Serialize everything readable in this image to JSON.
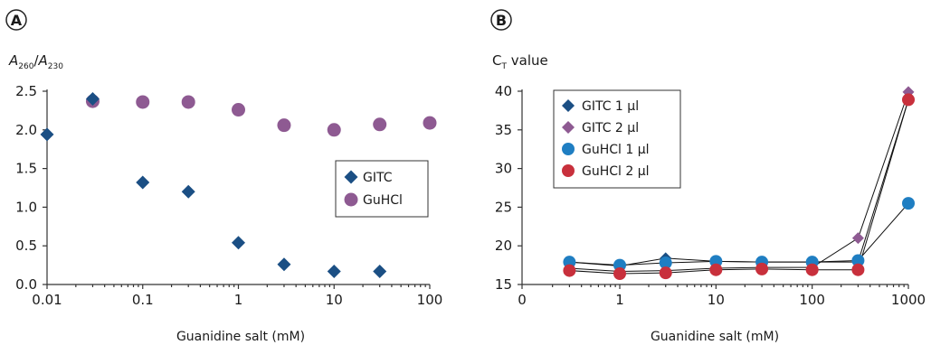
{
  "chart_data": [
    {
      "panel": "A",
      "type": "scatter",
      "ylabel": "A260/A230",
      "ylabel_parts": {
        "var1": "A",
        "sub1": "260",
        "slash": "/",
        "var2": "A",
        "sub2": "230"
      },
      "xlabel": "Guanidine salt (mM)",
      "xscale": "log",
      "xlim": [
        0.01,
        100
      ],
      "ylim": [
        0.0,
        2.5
      ],
      "xticks": [
        {
          "value": 0.01,
          "label": "0.01"
        },
        {
          "value": 0.1,
          "label": "0.1"
        },
        {
          "value": 1,
          "label": "1"
        },
        {
          "value": 10,
          "label": "10"
        },
        {
          "value": 100,
          "label": "100"
        }
      ],
      "yticks": [
        {
          "value": 0.0,
          "label": "0.0"
        },
        {
          "value": 0.5,
          "label": "0.5"
        },
        {
          "value": 1.0,
          "label": "1.0"
        },
        {
          "value": 1.5,
          "label": "1.5"
        },
        {
          "value": 2.0,
          "label": "2.0"
        },
        {
          "value": 2.5,
          "label": "2.5"
        }
      ],
      "legend_position": "middle-right",
      "series": [
        {
          "name": "GITC",
          "marker": "diamond",
          "color": "#1b4f84",
          "connected": false,
          "x": [
            0.01,
            0.03,
            0.1,
            0.3,
            1,
            3,
            10,
            30
          ],
          "y": [
            1.94,
            2.4,
            1.32,
            1.2,
            0.54,
            0.26,
            0.17,
            0.17
          ]
        },
        {
          "name": "GuHCl",
          "marker": "circle",
          "color": "#8e5a92",
          "connected": false,
          "x": [
            0.03,
            0.1,
            0.3,
            1,
            3,
            10,
            30,
            100
          ],
          "y": [
            2.37,
            2.36,
            2.36,
            2.26,
            2.06,
            2.0,
            2.07,
            2.09
          ]
        }
      ]
    },
    {
      "panel": "B",
      "type": "line",
      "ylabel": "CT value",
      "ylabel_parts": {
        "main": "C",
        "sub": "T",
        "rest": " value"
      },
      "xlabel": "Guanidine salt (mM)",
      "xscale": "log-with-zero",
      "xlim": [
        0,
        1000
      ],
      "ylim": [
        15,
        40
      ],
      "xticks": [
        {
          "value": 0,
          "label": "0"
        },
        {
          "value": 1,
          "label": "1"
        },
        {
          "value": 10,
          "label": "10"
        },
        {
          "value": 100,
          "label": "100"
        },
        {
          "value": 1000,
          "label": "1000"
        }
      ],
      "yticks": [
        {
          "value": 15,
          "label": "15"
        },
        {
          "value": 20,
          "label": "20"
        },
        {
          "value": 25,
          "label": "25"
        },
        {
          "value": 30,
          "label": "30"
        },
        {
          "value": 35,
          "label": "35"
        },
        {
          "value": 40,
          "label": "40"
        }
      ],
      "legend_position": "top-left",
      "series": [
        {
          "name": "GITC 1 µl",
          "marker": "diamond",
          "color": "#1b4f84",
          "connected": true,
          "x": [
            0.3,
            1,
            3,
            10,
            30,
            100,
            300,
            1000
          ],
          "y": [
            17.9,
            17.4,
            18.4,
            18.0,
            17.9,
            17.9,
            17.9,
            38.9
          ]
        },
        {
          "name": "GITC 2 µl",
          "marker": "diamond",
          "color": "#8e5a92",
          "connected": true,
          "x": [
            0.3,
            1,
            3,
            10,
            30,
            100,
            300,
            1000
          ],
          "y": [
            17.1,
            16.7,
            16.8,
            17.1,
            17.2,
            17.2,
            21.0,
            39.9
          ]
        },
        {
          "name": "GuHCl 1 µl",
          "marker": "circle",
          "color": "#1f7ec2",
          "connected": true,
          "x": [
            0.3,
            1,
            3,
            10,
            30,
            100,
            300,
            1000
          ],
          "y": [
            17.9,
            17.5,
            17.8,
            18.0,
            17.9,
            17.9,
            18.1,
            25.5
          ]
        },
        {
          "name": "GuHCl 2 µl",
          "marker": "circle",
          "color": "#c8303c",
          "connected": true,
          "x": [
            0.3,
            1,
            3,
            10,
            30,
            100,
            300,
            1000
          ],
          "y": [
            16.8,
            16.4,
            16.5,
            16.9,
            17.0,
            16.9,
            16.9,
            38.9
          ]
        }
      ]
    }
  ]
}
